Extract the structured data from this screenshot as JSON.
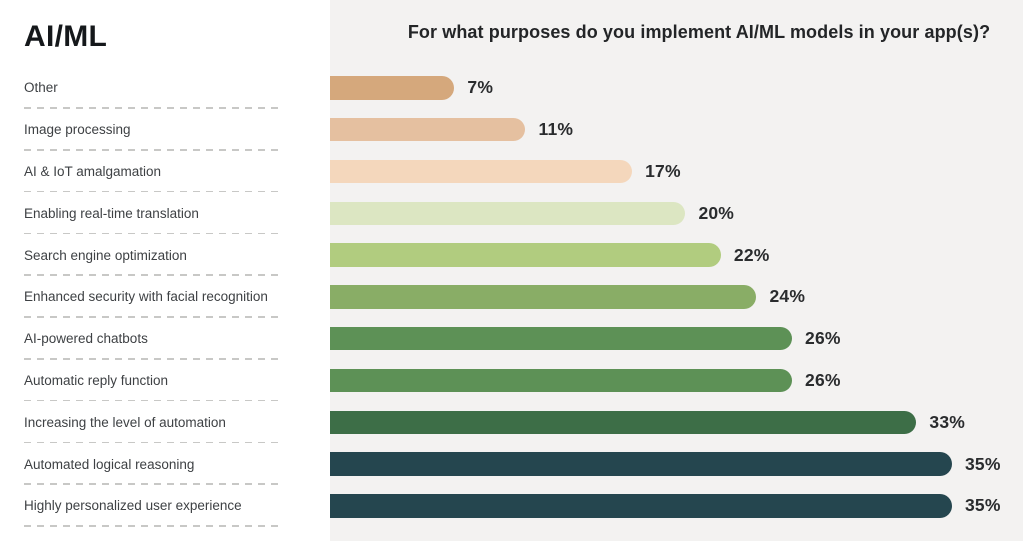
{
  "sidebar": {
    "title": "AI/ML"
  },
  "chart": {
    "title": "For what purposes do you implement AI/ML models in your app(s)?",
    "panel_background": "#f3f2f1"
  },
  "chart_data": {
    "type": "bar",
    "orientation": "horizontal",
    "title": "For what purposes do you implement AI/ML models in your app(s)?",
    "categories": [
      "Other",
      "Image processing",
      "AI & IoT amalgamation",
      "Enabling real-time translation",
      "Search engine optimization",
      "Enhanced security with facial recognition",
      "AI-powered chatbots",
      "Automatic reply function",
      "Increasing the level of automation",
      "Automated logical reasoning",
      "Highly personalized user experience"
    ],
    "values": [
      7,
      11,
      17,
      20,
      22,
      24,
      26,
      26,
      33,
      35,
      35
    ],
    "value_labels": [
      "7%",
      "11%",
      "17%",
      "20%",
      "22%",
      "24%",
      "26%",
      "26%",
      "33%",
      "35%",
      "35%"
    ],
    "bar_colors": [
      "#d5a87c",
      "#e5c0a0",
      "#f4d7bc",
      "#dce6c2",
      "#b1cc7f",
      "#89ad66",
      "#5d9156",
      "#5d9156",
      "#3d6e47",
      "#25464f",
      "#25464f"
    ],
    "unit": "%",
    "xlim": [
      0,
      35
    ],
    "grid": false,
    "legend": false
  }
}
